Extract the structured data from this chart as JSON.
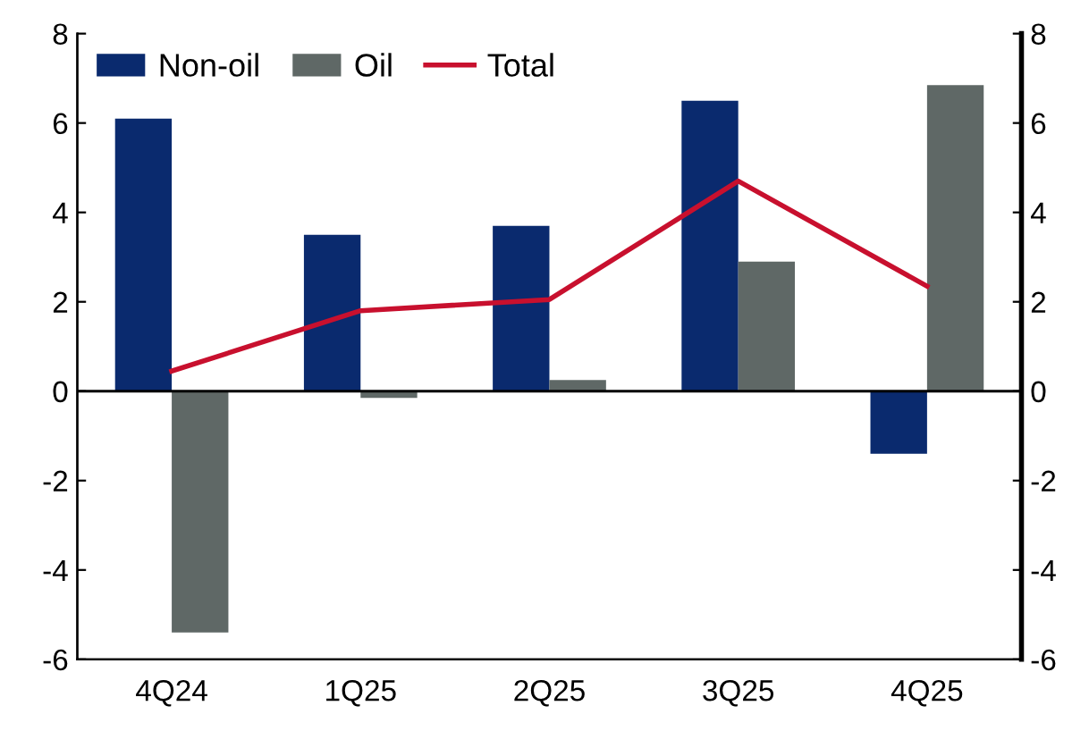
{
  "chart_data": {
    "type": "bar",
    "categories": [
      "4Q24",
      "1Q25",
      "2Q25",
      "3Q25",
      "4Q25"
    ],
    "series": [
      {
        "name": "Non-oil",
        "color": "#0a2a6e",
        "values": [
          6.1,
          3.5,
          3.7,
          6.5,
          -1.4
        ]
      },
      {
        "name": "Oil",
        "color": "#5f6866",
        "values": [
          -5.4,
          -0.15,
          0.25,
          2.9,
          6.85
        ]
      },
      {
        "name": "Total",
        "type": "line",
        "color": "#c8102e",
        "values": [
          0.45,
          1.8,
          2.05,
          4.7,
          2.35
        ]
      }
    ],
    "ylim": [
      -6,
      8
    ],
    "yticks": [
      -6,
      -4,
      -2,
      0,
      2,
      4,
      6,
      8
    ],
    "y2lim": [
      -6,
      8
    ],
    "y2ticks": [
      -6,
      -4,
      -2,
      0,
      2,
      4,
      6,
      8
    ],
    "ref_lines": [
      {
        "axis": "y",
        "value": 0,
        "color": "#000000"
      }
    ],
    "legend": "top left",
    "grid": false
  }
}
